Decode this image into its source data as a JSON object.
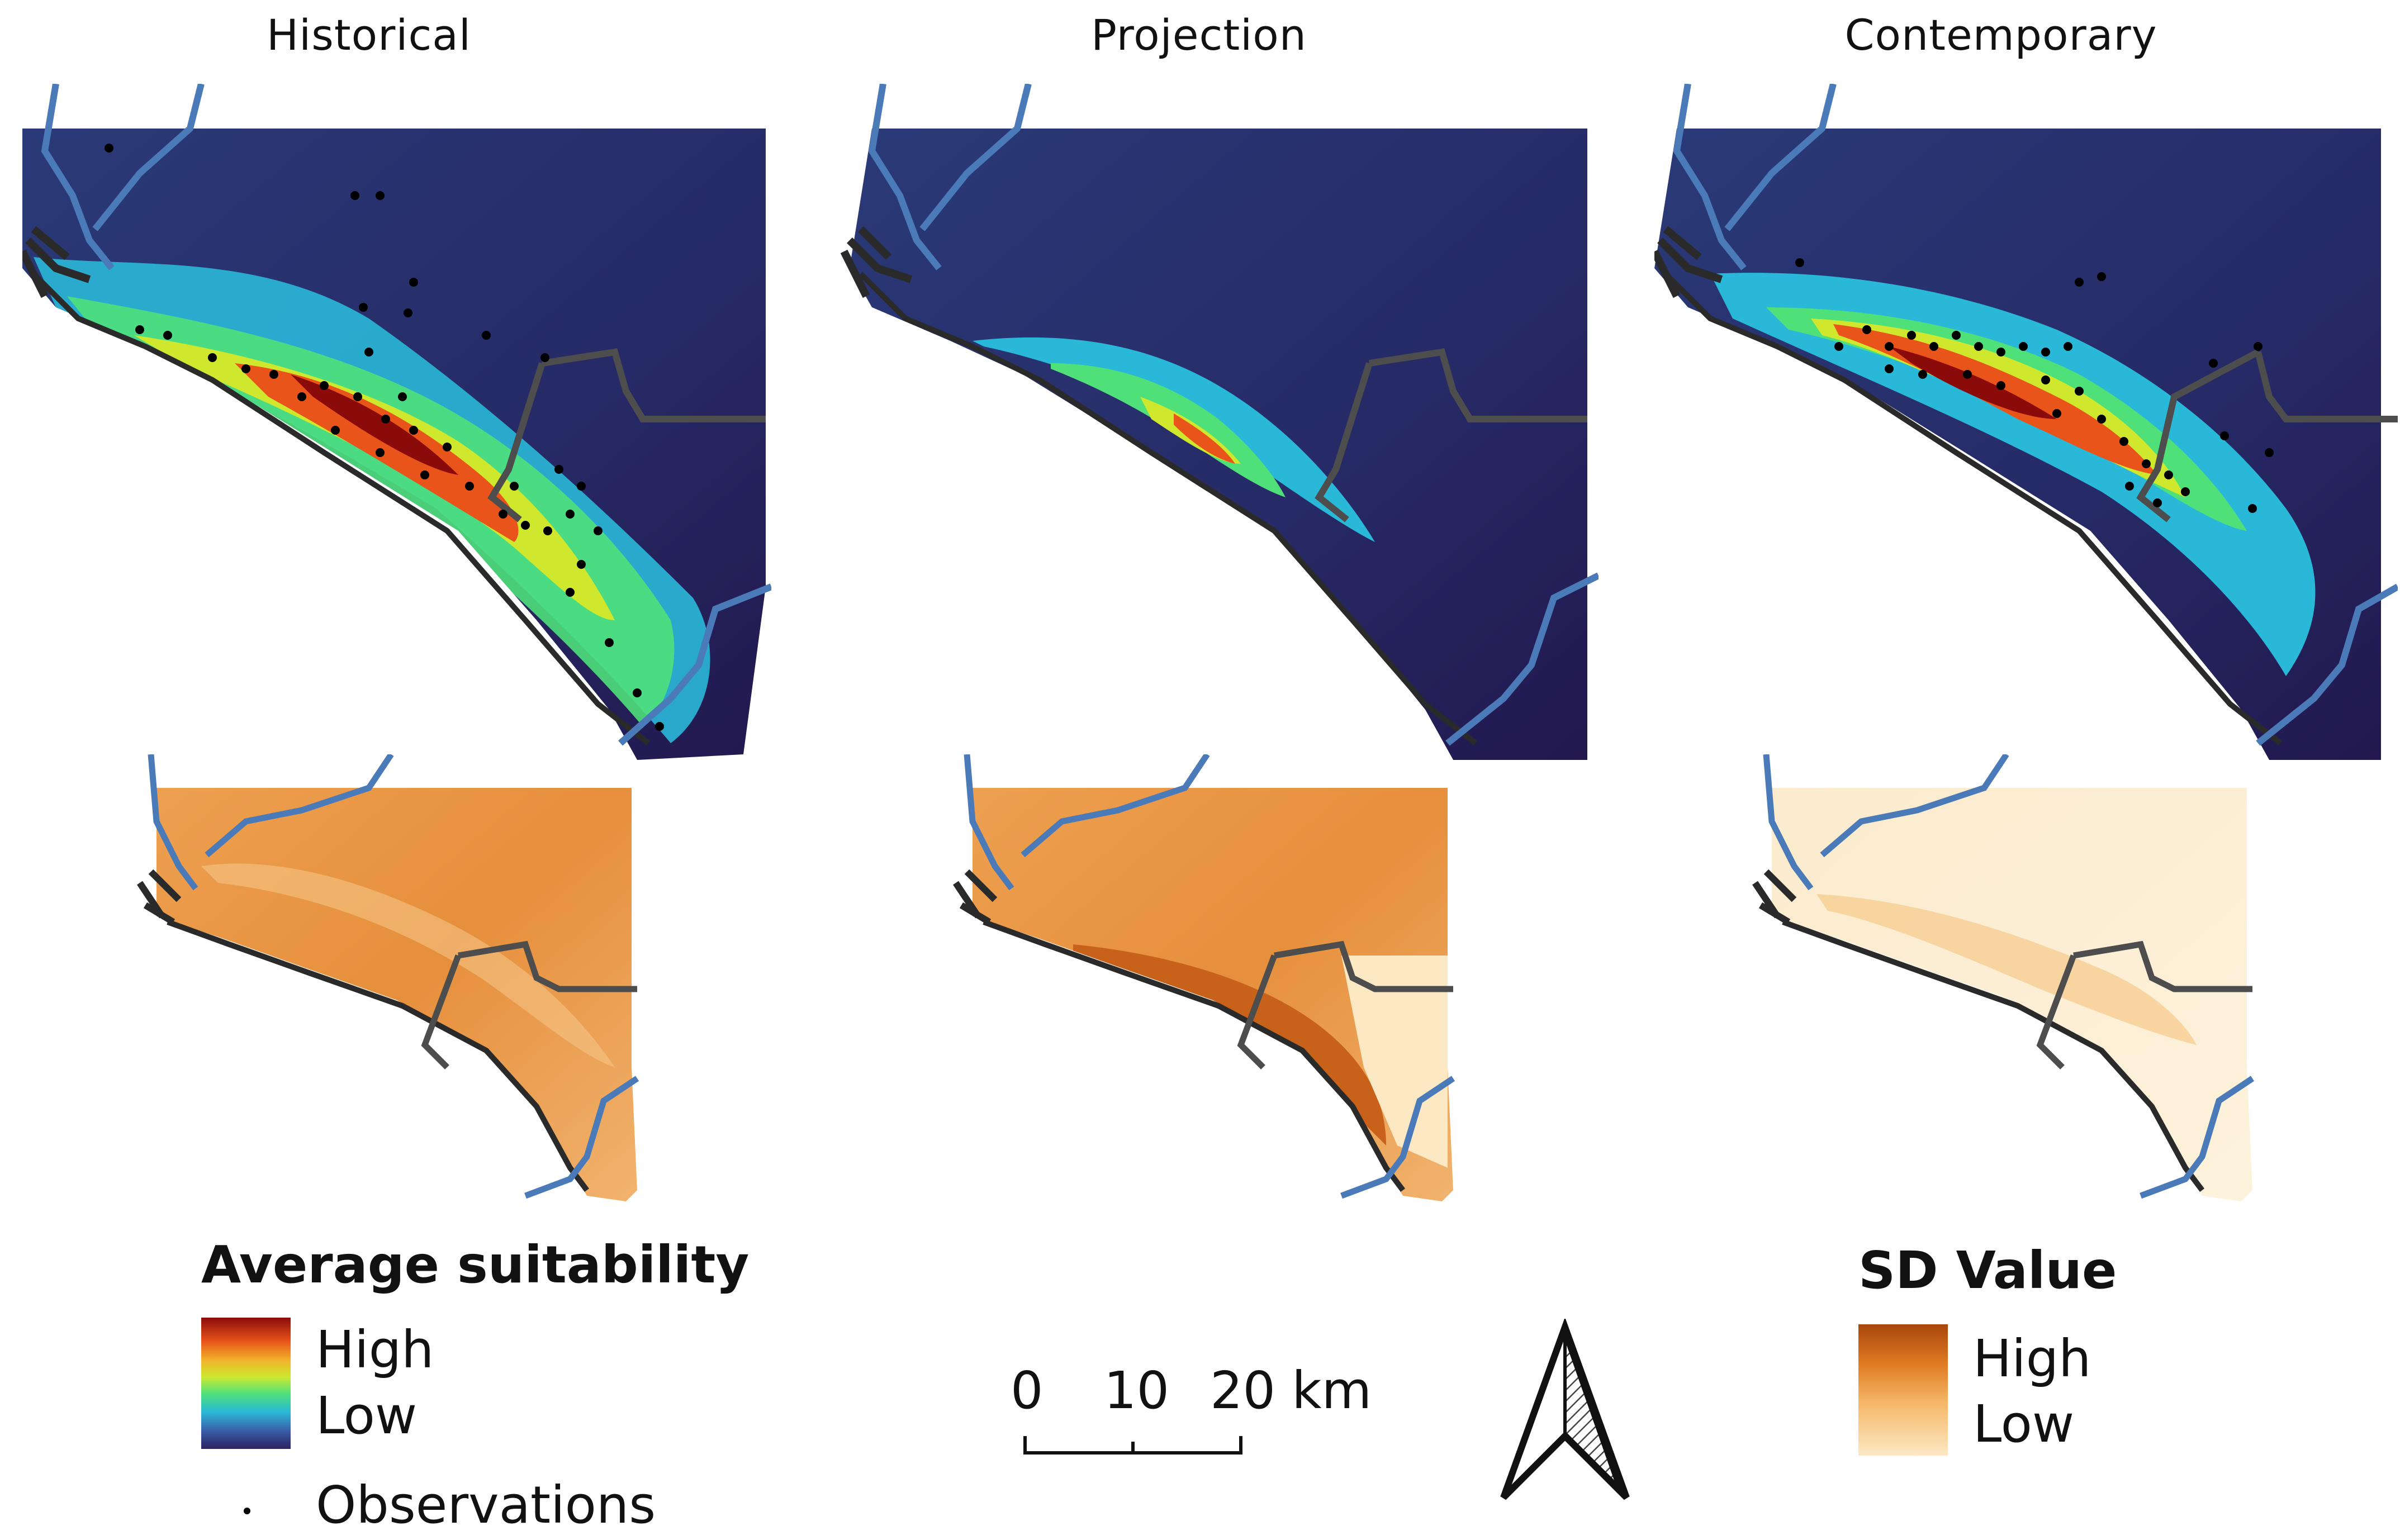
{
  "columns": [
    {
      "title": "Historical"
    },
    {
      "title": "Projection"
    },
    {
      "title": "Contemporary"
    }
  ],
  "legend_suitability": {
    "title": "Average suitability",
    "high": "High",
    "low": "Low",
    "observations": "Observations",
    "ramp_colors": [
      "#8b0a0a",
      "#e8541a",
      "#f2b02a",
      "#cfe82e",
      "#4fe07a",
      "#2ab8d8",
      "#3a5fa8",
      "#2b2160"
    ]
  },
  "legend_sd": {
    "title": "SD Value",
    "high": "High",
    "low": "Low",
    "ramp_colors": [
      "#a8460c",
      "#e07a22",
      "#f4b868",
      "#fde8c4"
    ]
  },
  "scale_bar": {
    "labels": [
      "0",
      "10",
      "20 km"
    ]
  },
  "north_arrow": {
    "icon": "north-arrow-icon"
  },
  "map_colors": {
    "river": "#4a7ab8",
    "boundary": "#4d4d4d",
    "coast": "#2a2a2a",
    "observation": "#000000"
  }
}
